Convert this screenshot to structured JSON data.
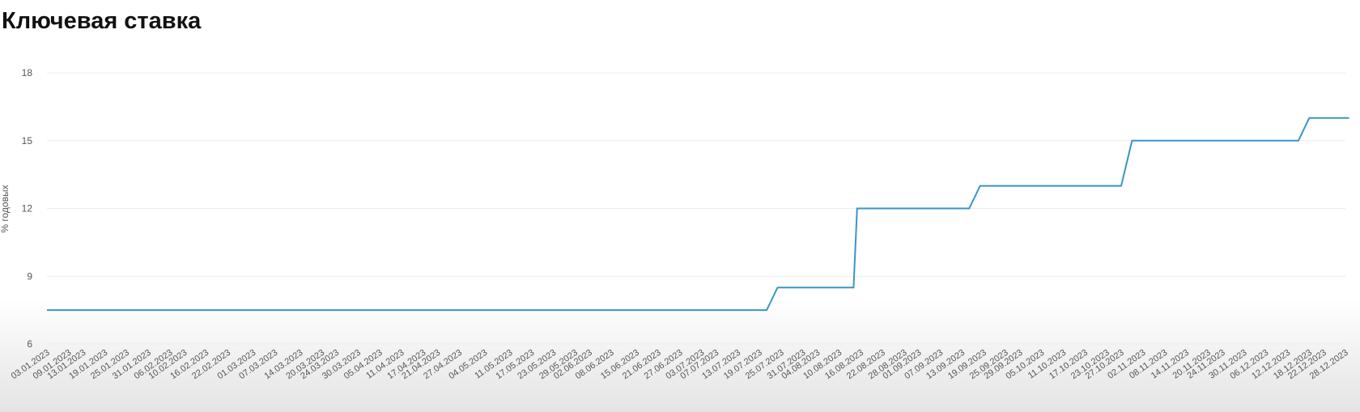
{
  "page": {
    "title": "Ключевая ставка"
  },
  "chart_data": {
    "type": "line",
    "title": "Ключевая ставка",
    "ylabel": "% годовых",
    "xlabel": "",
    "ylim": [
      6,
      18
    ],
    "yticks": [
      6,
      9,
      12,
      15,
      18
    ],
    "grid": true,
    "color": "#3a95c4",
    "x_tick_labels": [
      "03.01.2023",
      "09.01.2023",
      "13.01.2023",
      "19.01.2023",
      "25.01.2023",
      "31.01.2023",
      "06.02.2023",
      "10.02.2023",
      "16.02.2023",
      "22.02.2023",
      "01.03.2023",
      "07.03.2023",
      "14.03.2023",
      "20.03.2023",
      "24.03.2023",
      "30.03.2023",
      "05.04.2023",
      "11.04.2023",
      "17.04.2023",
      "21.04.2023",
      "27.04.2023",
      "04.05.2023",
      "11.05.2023",
      "17.05.2023",
      "23.05.2023",
      "29.05.2023",
      "02.06.2023",
      "08.06.2023",
      "15.06.2023",
      "21.06.2023",
      "27.06.2023",
      "03.07.2023",
      "07.07.2023",
      "13.07.2023",
      "19.07.2023",
      "25.07.2023",
      "31.07.2023",
      "04.08.2023",
      "10.08.2023",
      "16.08.2023",
      "22.08.2023",
      "28.08.2023",
      "01.09.2023",
      "07.09.2023",
      "13.09.2023",
      "19.09.2023",
      "25.09.2023",
      "29.09.2023",
      "05.10.2023",
      "11.10.2023",
      "17.10.2023",
      "23.10.2023",
      "27.10.2023",
      "02.11.2023",
      "08.11.2023",
      "14.11.2023",
      "20.11.2023",
      "24.11.2023",
      "30.11.2023",
      "06.12.2023",
      "12.12.2023",
      "18.12.2023",
      "22.12.2023",
      "28.12.2023"
    ],
    "series": [
      {
        "points": [
          {
            "x": "03.01.2023",
            "y": 7.5
          },
          {
            "x": "21.07.2023",
            "y": 7.5
          },
          {
            "x": "24.07.2023",
            "y": 8.5
          },
          {
            "x": "14.08.2023",
            "y": 8.5
          },
          {
            "x": "15.08.2023",
            "y": 12
          },
          {
            "x": "15.09.2023",
            "y": 12
          },
          {
            "x": "18.09.2023",
            "y": 13
          },
          {
            "x": "27.10.2023",
            "y": 13
          },
          {
            "x": "30.10.2023",
            "y": 15
          },
          {
            "x": "15.12.2023",
            "y": 15
          },
          {
            "x": "18.12.2023",
            "y": 16
          },
          {
            "x": "29.12.2023",
            "y": 16
          }
        ]
      }
    ]
  }
}
